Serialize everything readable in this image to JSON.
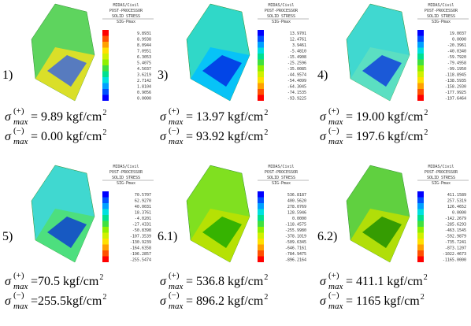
{
  "symbols": {
    "sigma": "σ",
    "sub": "max",
    "plus": "(+)",
    "minus": "(−)",
    "exp": "2"
  },
  "panels": [
    {
      "label": "1)",
      "header": [
        "MIDAS/Civil",
        "POST-PROCESSOR",
        "SOLID STRESS",
        "SIG-Pmax"
      ],
      "scale": [
        "9.8931",
        "8.9938",
        "8.0944",
        "7.0951",
        "6.3053",
        "5.4075",
        "4.5037",
        "3.6219",
        "2.7142",
        "1.8104",
        "0.9056",
        "0.0000"
      ],
      "plus": "= 9.89 kgf/cm",
      "minus": "= 0.00 kgf/cm"
    },
    {
      "label": "3)",
      "header": [
        "MIDAS/Civil",
        "POST-PROCESSOR",
        "SOLID STRESS",
        "SIG-Pmax"
      ],
      "scale": [
        "13.9701",
        "12.4761",
        "3.9461",
        "-5.4810",
        "-15.4908",
        "-25.2596",
        "-35.0085",
        "-44.9574",
        "-54.4099",
        "-64.3045",
        "-74.1535",
        "-93.9225"
      ],
      "plus": "= 13.97 kgf/cm",
      "minus": "= 93.92 kgf/cm"
    },
    {
      "label": "4)",
      "header": [
        "MIDAS/Civil",
        "POST-PROCESSOR",
        "SOLID STRESS",
        "SIG-Pmax"
      ],
      "scale": [
        "19.0037",
        "0.0000",
        "-20.3961",
        "-40.0340",
        "-59.7920",
        "-79.4958",
        "-99.1950",
        "-118.8945",
        "-138.5935",
        "-158.2930",
        "-177.9925",
        "-197.6464"
      ],
      "plus": "= 19.00 kgf/cm",
      "minus": "= 197.6 kgf/cm"
    },
    {
      "label": "5)",
      "header": [
        "MIDAS/Civil",
        "POST-PROCESSOR",
        "SOLID STRESS",
        "SIG-Pmax"
      ],
      "scale": [
        "70.5707",
        "62.9270",
        "40.0031",
        "18.3761",
        "-4.0201",
        "-27.4331",
        "-50.8398",
        "-107.3539",
        "-130.9239",
        "-164.6358",
        "-196.2857",
        "-255.5474"
      ],
      "plus": "=70.5 kgf/cm",
      "minus": "=255.5kgf/cm"
    },
    {
      "label": "6.1)",
      "header": [
        "MIDAS/Civil",
        "POST-PROCESSOR",
        "SOLID STRESS",
        "SIG-Pmax"
      ],
      "scale": [
        "536.8187",
        "400.5620",
        "278.0769",
        "128.5946",
        "0.0000",
        "-118.4575",
        "-255.9980",
        "-378.1019",
        "-509.6345",
        "-646.7161",
        "-784.9475",
        "-896.2164"
      ],
      "plus": "= 536.8 kgf/cm",
      "minus": "= 896.2 kgf/cm"
    },
    {
      "label": "6.2)",
      "header": [
        "MIDAS/Civil",
        "POST-PROCESSOR",
        "SOLID STRESS",
        "SIG-Pmax"
      ],
      "scale": [
        "411.1589",
        "257.5319",
        "126.4652",
        "0.0000",
        "-142.2679",
        "-285.6293",
        "-463.1545",
        "-592.9879",
        "-735.7241",
        "-873.1207",
        "-1022.4673",
        "-1165.0000"
      ],
      "plus": "= 411.1 kgf/cm",
      "minus": "= 1165 kgf/cm"
    }
  ]
}
